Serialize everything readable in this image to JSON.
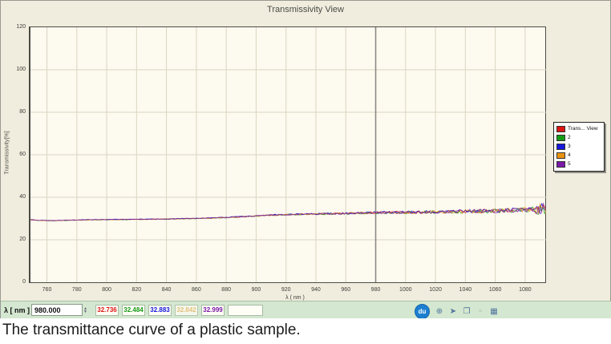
{
  "window": {
    "title": "Transmissivity View"
  },
  "caption": "The transmittance curve of a plastic sample.",
  "chart_data": {
    "type": "line",
    "title": "Transmissivity View",
    "xlabel": "λ ( nm )",
    "ylabel": "Transmissivity[%]",
    "xlim": [
      749,
      1094
    ],
    "ylim": [
      0,
      120
    ],
    "x_ticks": [
      760,
      780,
      800,
      820,
      840,
      860,
      880,
      900,
      920,
      940,
      960,
      980,
      1000,
      1020,
      1040,
      1060,
      1080
    ],
    "y_ticks": [
      0,
      20,
      40,
      60,
      80,
      100,
      120
    ],
    "grid": true,
    "legend_position": "right-outside",
    "cursor_x": 980,
    "plot_bg": "#fdfaef",
    "grid_color": "#d9d6c3",
    "cursor_color": "#8a8a86",
    "series": [
      {
        "name": "Trans... View",
        "color": "#dd1414",
        "value_at_cursor": 32.736
      },
      {
        "name": "2",
        "color": "#169a16",
        "value_at_cursor": 32.484
      },
      {
        "name": "3",
        "color": "#1616dd",
        "value_at_cursor": 32.883
      },
      {
        "name": "4",
        "color": "#e89212",
        "value_at_cursor": 32.842
      },
      {
        "name": "5",
        "color": "#7a18a8",
        "value_at_cursor": 32.999
      }
    ],
    "base_curve": {
      "x": [
        749,
        755,
        765,
        775,
        790,
        805,
        820,
        835,
        850,
        865,
        880,
        895,
        910,
        925,
        940,
        955,
        970,
        985,
        1000,
        1015,
        1030,
        1045,
        1060,
        1075,
        1085,
        1094
      ],
      "y": [
        29.4,
        29.1,
        29.0,
        29.2,
        29.4,
        29.5,
        29.6,
        29.7,
        29.9,
        30.1,
        30.5,
        31.0,
        31.6,
        31.9,
        32.1,
        32.3,
        32.6,
        32.8,
        32.9,
        33.0,
        33.2,
        33.4,
        33.6,
        34.0,
        34.4,
        35.0
      ]
    },
    "noise": {
      "seed": 7,
      "base_amp": 0.12,
      "growth_amp": 1.15,
      "exponent": 2.5,
      "end_spike_from": 1087,
      "end_spike_mult": 2.4,
      "series_offsets": [
        0,
        -0.06,
        0.06,
        -0.03,
        0.03
      ]
    }
  },
  "statusbar": {
    "lambda_label": "λ [ nm ]",
    "lambda_value": "980.000",
    "readouts": [
      {
        "value": "32.736",
        "color": "#dd1414",
        "dim": false
      },
      {
        "value": "32.484",
        "color": "#169a16",
        "dim": false
      },
      {
        "value": "32.883",
        "color": "#1616dd",
        "dim": false
      },
      {
        "value": "32.842",
        "color": "#eab463",
        "dim": true
      },
      {
        "value": "32.999",
        "color": "#7a18a8",
        "dim": false
      },
      {
        "value": "",
        "color": "#000000",
        "dim": false
      }
    ],
    "toolbar": {
      "logo_text": "du",
      "icons": [
        {
          "name": "zoom-icon",
          "glyph": "⊕",
          "dim": false
        },
        {
          "name": "cursor-icon",
          "glyph": "➤",
          "dim": false
        },
        {
          "name": "copy-icon",
          "glyph": "❐",
          "dim": false
        },
        {
          "name": "pan-icon",
          "glyph": "▫",
          "dim": true
        },
        {
          "name": "grid-icon",
          "glyph": "▦",
          "dim": false
        }
      ]
    }
  }
}
